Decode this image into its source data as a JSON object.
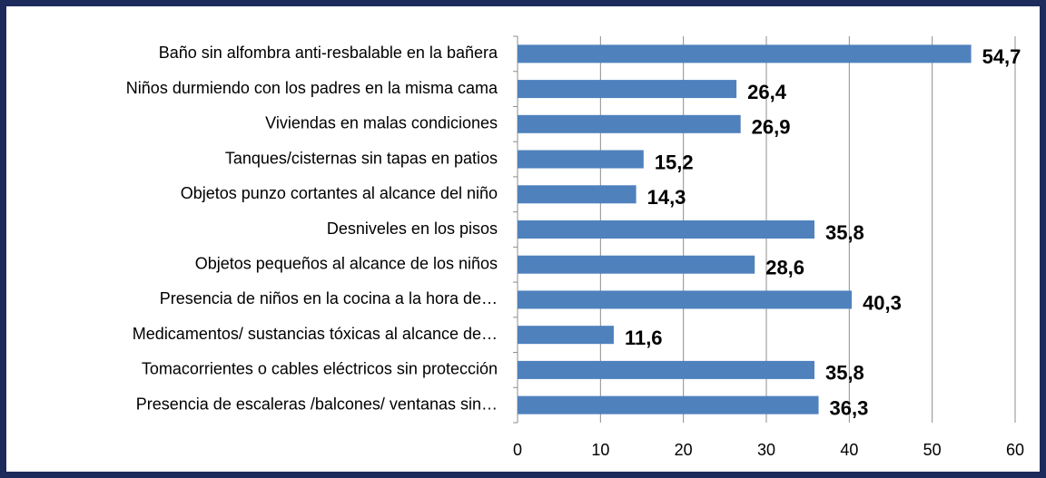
{
  "chart_data": {
    "type": "barh",
    "categories": [
      "Baño sin alfombra anti-resbalable en la bañera",
      "Niños durmiendo con los padres en la misma cama",
      "Viviendas en malas condiciones",
      "Tanques/cisternas sin tapas en patios",
      "Objetos punzo cortantes al alcance del niño",
      "Desniveles en los pisos",
      "Objetos pequeños al alcance de los niños",
      "Presencia de niños en la cocina a la hora de…",
      "Medicamentos/ sustancias tóxicas al alcance de…",
      "Tomacorrientes o cables eléctricos sin protección",
      "Presencia de escaleras /balcones/ ventanas sin…"
    ],
    "values": [
      54.7,
      26.4,
      26.9,
      15.2,
      14.3,
      35.8,
      28.6,
      40.3,
      11.6,
      35.8,
      36.3
    ],
    "value_labels": [
      "54,7",
      "26,4",
      "26,9",
      "15,2",
      "14,3",
      "35,8",
      "28,6",
      "40,3",
      "11,6",
      "35,8",
      "36,3"
    ],
    "color": "#4f81bd",
    "xlim": [
      0,
      60
    ],
    "xticks": [
      0,
      10,
      20,
      30,
      40,
      50,
      60
    ],
    "grid": true
  }
}
